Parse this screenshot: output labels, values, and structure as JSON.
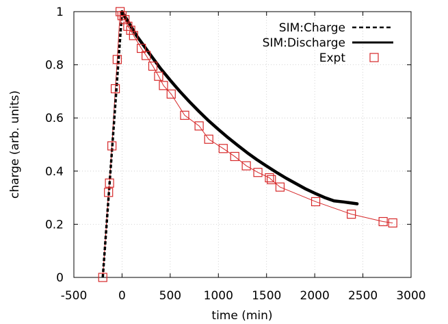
{
  "chart_data": {
    "type": "line",
    "xlabel": "time (min)",
    "ylabel": "charge (arb. units)",
    "xlim": [
      -500,
      3000
    ],
    "ylim": [
      0,
      1
    ],
    "xticks": [
      -500,
      0,
      500,
      1000,
      1500,
      2000,
      2500,
      3000
    ],
    "yticks": [
      0,
      0.2,
      0.4,
      0.6,
      0.8,
      1
    ],
    "xtick_labels": [
      "-500",
      "0",
      "500",
      "1000",
      "1500",
      "2000",
      "2500",
      "3000"
    ],
    "ytick_labels": [
      "0",
      "0.2",
      "0.4",
      "0.6",
      "0.8",
      "1"
    ],
    "grid": true,
    "legend_position": "top-right",
    "series": [
      {
        "name": "SIM:Charge",
        "style": "dashed",
        "color": "#000000",
        "x": [
          -200,
          0
        ],
        "y": [
          0.0,
          1.0
        ]
      },
      {
        "name": "SIM:Discharge",
        "style": "solid-thick",
        "color": "#000000",
        "x": [
          0,
          50,
          100,
          150,
          200,
          300,
          400,
          500,
          600,
          700,
          800,
          900,
          1000,
          1100,
          1200,
          1300,
          1400,
          1500,
          1600,
          1700,
          1800,
          1900,
          2000,
          2100,
          2200,
          2300,
          2440
        ],
        "y": [
          1.0,
          0.97,
          0.94,
          0.91,
          0.885,
          0.835,
          0.786,
          0.742,
          0.7,
          0.661,
          0.624,
          0.589,
          0.557,
          0.526,
          0.497,
          0.469,
          0.443,
          0.419,
          0.396,
          0.374,
          0.354,
          0.334,
          0.317,
          0.301,
          0.288,
          0.284,
          0.277
        ]
      },
      {
        "name": "Expt",
        "style": "markers-line",
        "color": "#d62728",
        "x": [
          -200,
          -140,
          -130,
          -105,
          -70,
          -50,
          -20,
          0,
          30,
          60,
          90,
          120,
          200,
          250,
          320,
          380,
          430,
          510,
          650,
          800,
          900,
          1050,
          1170,
          1290,
          1410,
          1530,
          1550,
          1640,
          2010,
          2380,
          2710,
          2810
        ],
        "y": [
          0.0,
          0.32,
          0.355,
          0.495,
          0.71,
          0.82,
          1.0,
          0.985,
          0.97,
          0.945,
          0.93,
          0.91,
          0.862,
          0.835,
          0.795,
          0.757,
          0.722,
          0.69,
          0.61,
          0.57,
          0.52,
          0.485,
          0.455,
          0.42,
          0.395,
          0.375,
          0.368,
          0.34,
          0.285,
          0.238,
          0.21,
          0.205
        ]
      }
    ]
  }
}
